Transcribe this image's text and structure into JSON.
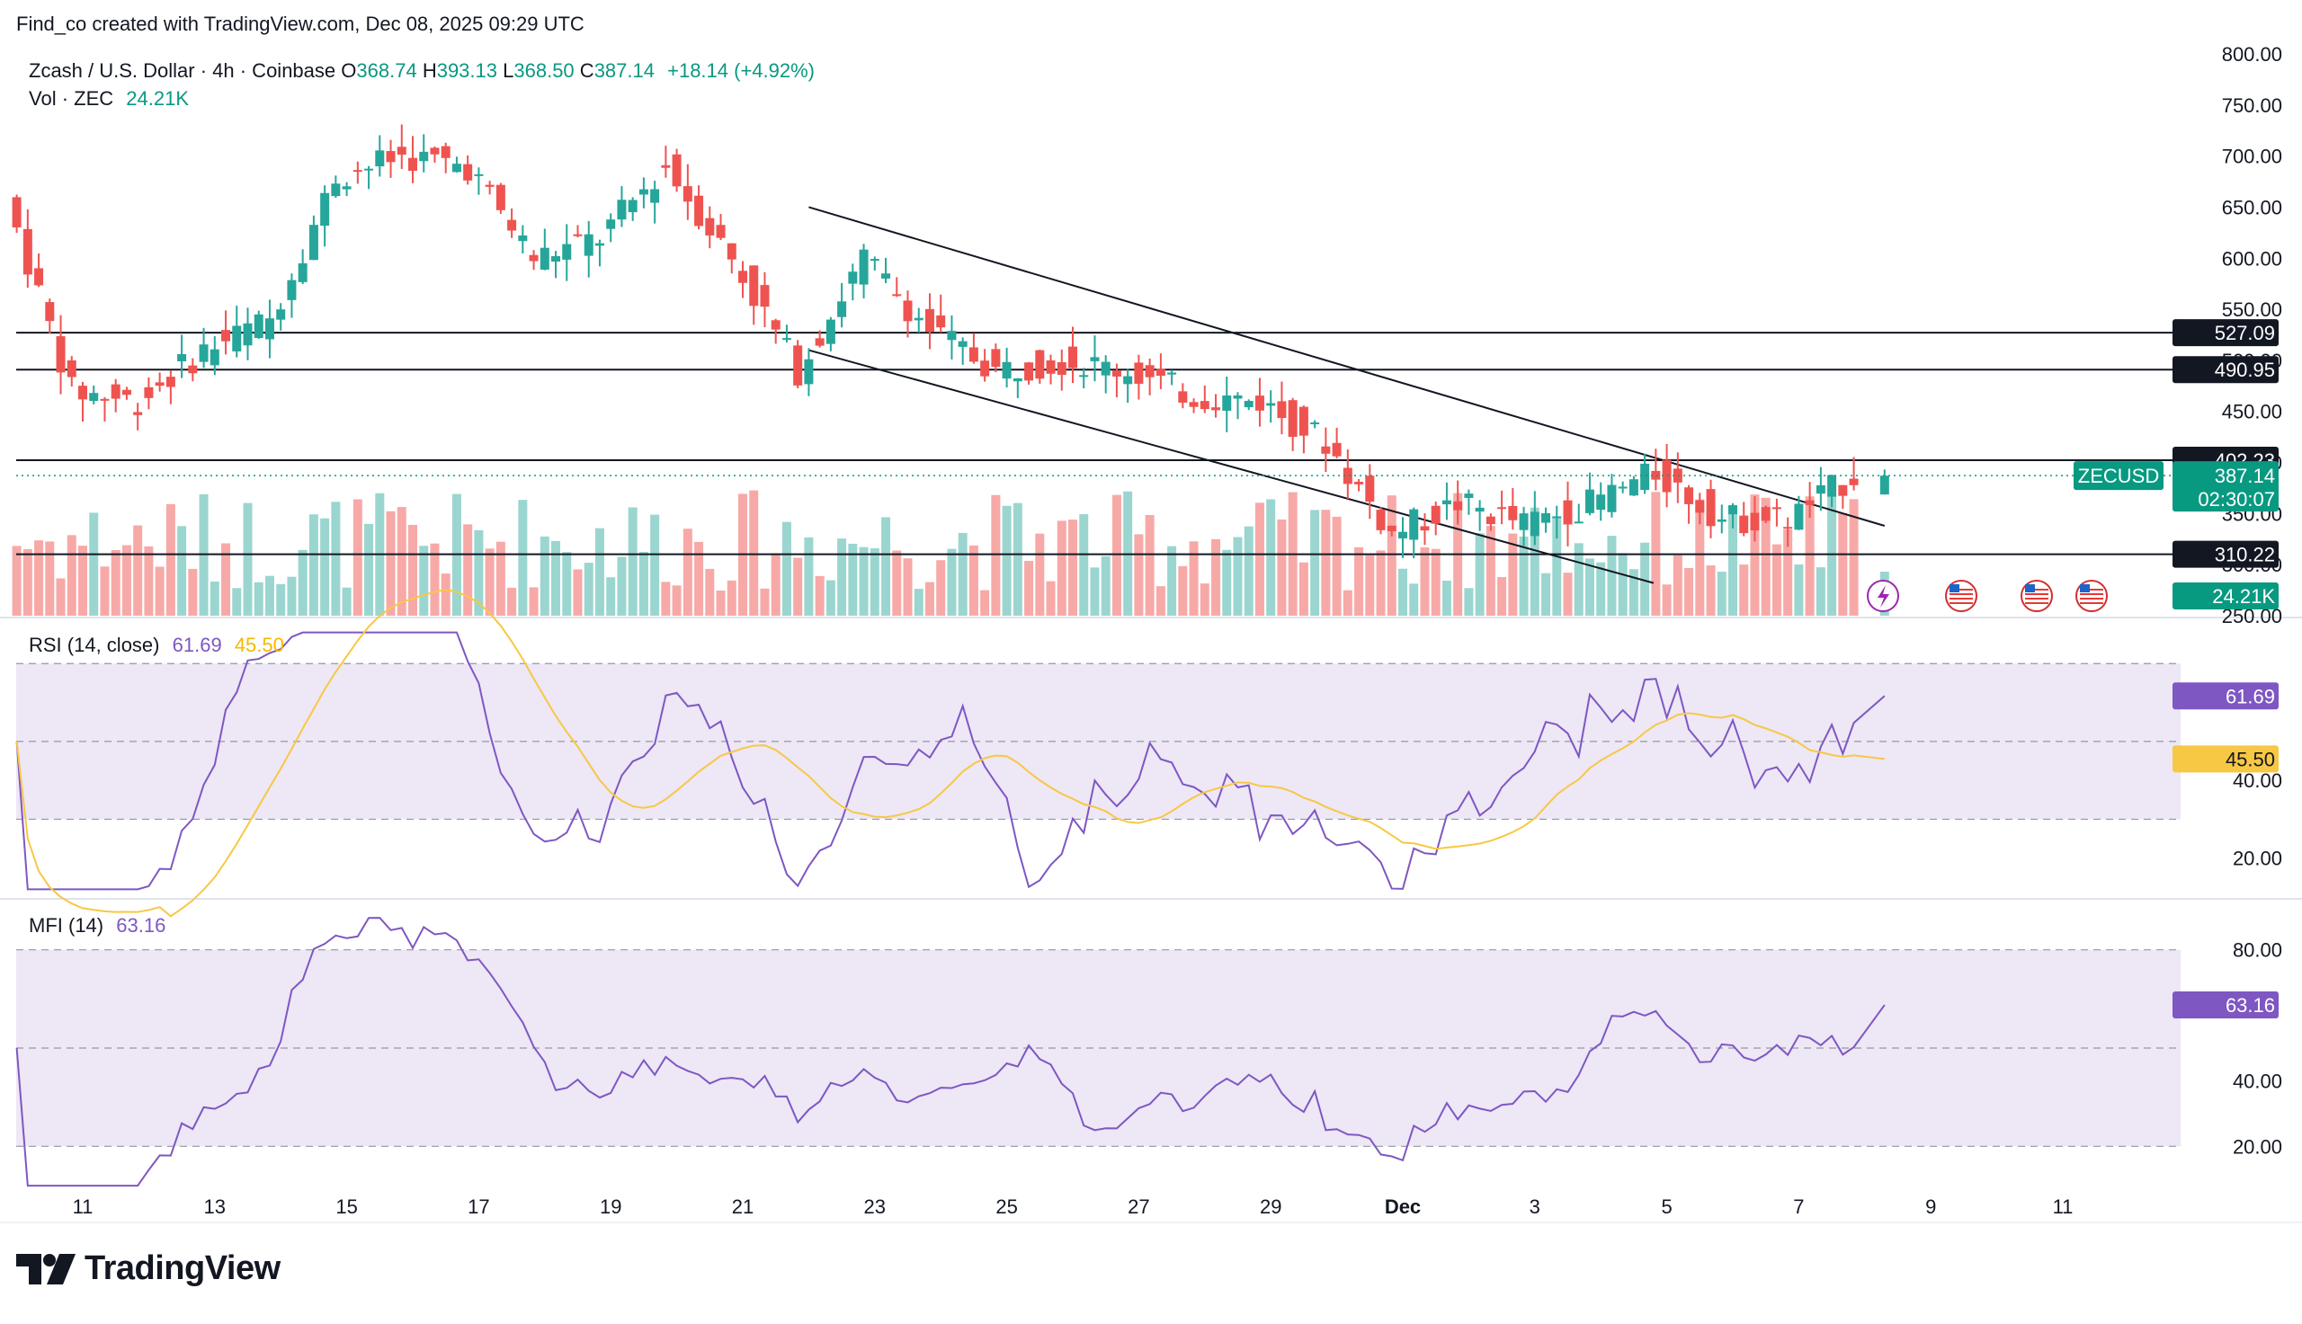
{
  "header": {
    "creator_line": "Find_co created with TradingView.com, Dec 08, 2025 09:29 UTC"
  },
  "legend": {
    "symbol": "Zcash / U.S. Dollar · 4h · Coinbase",
    "o_label": "O",
    "o": "368.74",
    "h_label": "H",
    "h": "393.13",
    "l_label": "L",
    "l": "368.50",
    "c_label": "C",
    "c": "387.14",
    "change": "+18.14 (+4.92%)",
    "vol_label": "Vol · ZEC",
    "vol": "24.21K"
  },
  "rsi_legend": {
    "label": "RSI (14, close)",
    "rsi": "61.69",
    "ma": "45.50"
  },
  "mfi_legend": {
    "label": "MFI (14)",
    "mfi": "63.16"
  },
  "branding": {
    "name": "TradingView"
  },
  "colors": {
    "up": "#26a69a",
    "down": "#ef5350",
    "vol_up": "#9ad6cf",
    "vol_down": "#f7a9a7",
    "rsi_line": "#7e57c2",
    "rsi_ma": "#f7c844",
    "band": "#ede7f6",
    "accent": "#089981"
  },
  "chart_data": [
    {
      "type": "candlestick",
      "title": "Zcash / U.S. Dollar · 4h · Coinbase",
      "x_ticks": [
        "11",
        "13",
        "15",
        "17",
        "19",
        "21",
        "23",
        "25",
        "27",
        "29",
        "Dec",
        "3",
        "5",
        "7",
        "9",
        "11"
      ],
      "y_ticks": [
        "800.00",
        "750.00",
        "700.00",
        "650.00",
        "600.00",
        "550.00",
        "500.00",
        "450.00",
        "400.00",
        "350.00",
        "300.00",
        "250.00"
      ],
      "ylim": [
        250,
        800
      ],
      "last_price": {
        "symbol": "ZECUSD",
        "value": "387.14",
        "countdown": "02:30:07"
      },
      "horizontal_levels": [
        "527.09",
        "490.95",
        "402.23",
        "310.22"
      ],
      "volume_last": "24.21K",
      "daily_closes": [
        {
          "date": "10",
          "close": 660
        },
        {
          "date": "11",
          "close": 470
        },
        {
          "date": "12",
          "close": 460
        },
        {
          "date": "13",
          "close": 510
        },
        {
          "date": "14",
          "close": 540
        },
        {
          "date": "15",
          "close": 680
        },
        {
          "date": "16",
          "close": 700
        },
        {
          "date": "17",
          "close": 690
        },
        {
          "date": "18",
          "close": 600
        },
        {
          "date": "19",
          "close": 620
        },
        {
          "date": "20",
          "close": 690
        },
        {
          "date": "21",
          "close": 600
        },
        {
          "date": "22",
          "close": 490
        },
        {
          "date": "23",
          "close": 600
        },
        {
          "date": "24",
          "close": 530
        },
        {
          "date": "25",
          "close": 490
        },
        {
          "date": "26",
          "close": 500
        },
        {
          "date": "27",
          "close": 490
        },
        {
          "date": "28",
          "close": 465
        },
        {
          "date": "29",
          "close": 460
        },
        {
          "date": "30",
          "close": 420
        },
        {
          "date": "Dec 1",
          "close": 330
        },
        {
          "date": "2",
          "close": 360
        },
        {
          "date": "3",
          "close": 340
        },
        {
          "date": "4",
          "close": 360
        },
        {
          "date": "5",
          "close": 390
        },
        {
          "date": "6",
          "close": 345
        },
        {
          "date": "7",
          "close": 345
        },
        {
          "date": "8",
          "close": 387.14
        }
      ],
      "trendlines": [
        {
          "name": "upper",
          "from": {
            "date": "22",
            "price": 650
          },
          "to": {
            "date": "8.3",
            "price": 338
          }
        },
        {
          "name": "lower",
          "from": {
            "date": "22",
            "price": 510
          },
          "to": {
            "date": "4.8",
            "price": 282
          }
        }
      ]
    },
    {
      "type": "line",
      "title": "RSI (14, close)",
      "y_ticks": [
        "40.00",
        "20.00"
      ],
      "band": [
        30,
        70
      ],
      "ylim": [
        10,
        80
      ],
      "last_values": {
        "rsi": "61.69",
        "ma": "45.50"
      }
    },
    {
      "type": "line",
      "title": "MFI (14)",
      "y_ticks": [
        "80.00",
        "40.00",
        "20.00"
      ],
      "band": [
        20,
        80
      ],
      "ylim": [
        5,
        95
      ],
      "last_value": "63.16"
    }
  ]
}
